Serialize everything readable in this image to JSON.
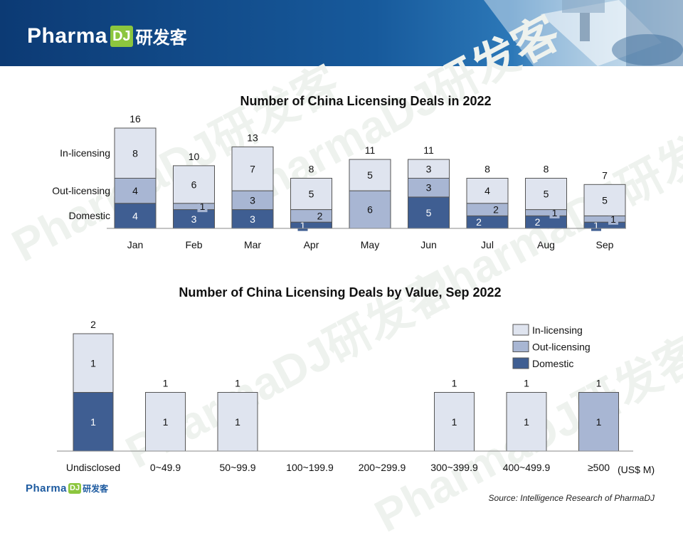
{
  "header": {
    "brand_word": "Pharma",
    "brand_dj": "DJ",
    "brand_cn": "研发客"
  },
  "footer": {
    "brand_word": "Pharma",
    "brand_dj": "DJ",
    "brand_cn": "研发客",
    "source": "Source: Intelligence Research of PharmaDJ"
  },
  "watermark_text": "PharmaDJ研发客",
  "colors": {
    "in_licensing": "#dfe4ef",
    "out_licensing": "#a8b6d3",
    "domestic": "#3f5e92",
    "border": "#555555",
    "banner_dark": "#0c3a74"
  },
  "chart_data": [
    {
      "type": "bar",
      "stacked": true,
      "title": "Number of China Licensing Deals in 2022",
      "categories": [
        "Jan",
        "Feb",
        "Mar",
        "Apr",
        "May",
        "Jun",
        "Jul",
        "Aug",
        "Sep"
      ],
      "series": [
        {
          "name": "Domestic",
          "values": [
            4,
            3,
            3,
            1,
            0,
            5,
            2,
            2,
            1
          ]
        },
        {
          "name": "Out-licensing",
          "values": [
            4,
            1,
            3,
            2,
            6,
            3,
            2,
            1,
            1
          ]
        },
        {
          "name": "In-licensing",
          "values": [
            8,
            6,
            7,
            5,
            5,
            3,
            4,
            5,
            5
          ]
        }
      ],
      "totals": [
        16,
        10,
        13,
        8,
        11,
        11,
        8,
        8,
        7
      ],
      "series_labels_at_left": [
        "In-licensing",
        "Out-licensing",
        "Domestic"
      ],
      "ylim": [
        0,
        16
      ],
      "grid": false
    },
    {
      "type": "bar",
      "stacked": true,
      "title": "Number of China Licensing Deals by Value, Sep 2022",
      "categories": [
        "Undisclosed",
        "0~49.9",
        "50~99.9",
        "100~199.9",
        "200~299.9",
        "300~399.9",
        "400~499.9",
        "≥500"
      ],
      "series": [
        {
          "name": "Domestic",
          "values": [
            1,
            0,
            0,
            0,
            0,
            0,
            0,
            0
          ]
        },
        {
          "name": "Out-licensing",
          "values": [
            0,
            0,
            0,
            0,
            0,
            0,
            0,
            1
          ]
        },
        {
          "name": "In-licensing",
          "values": [
            1,
            1,
            1,
            0,
            0,
            1,
            1,
            0
          ]
        }
      ],
      "totals": [
        2,
        1,
        1,
        null,
        null,
        1,
        1,
        1
      ],
      "unit_label": "(US$ M)",
      "legend": {
        "placement": "top-right",
        "entries": [
          "In-licensing",
          "Out-licensing",
          "Domestic"
        ]
      },
      "ylim": [
        0,
        2
      ],
      "grid": false
    }
  ]
}
